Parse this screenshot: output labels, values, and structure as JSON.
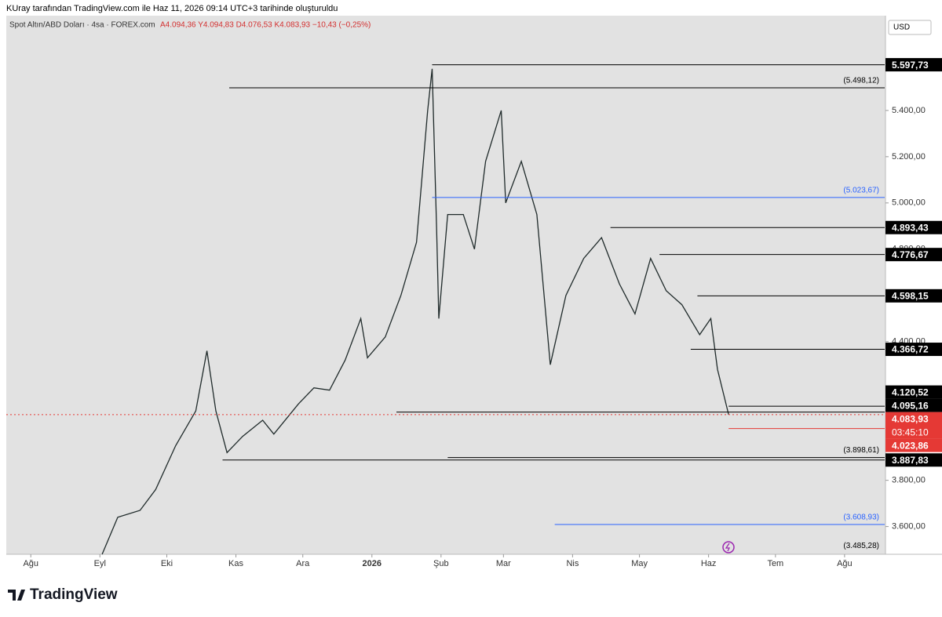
{
  "caption": "KUray tarafından TradingView.com ile Haz 11, 2026 09:14 UTC+3 tarihinde oluşturuldu",
  "brand": "TradingView",
  "chart_data": {
    "type": "line",
    "title": "Spot Altın/ABD Doları · 4sa · FOREX.com",
    "ohlc": "A4.094,36 Y4.094,83 D4.076,53 K4.083,93 −10,43 (−0,25%)",
    "currency": "USD",
    "color": "#1f2a2a",
    "xlim": [
      -11,
      383
    ],
    "ylim": [
      3480,
      5810
    ],
    "xticks": [
      {
        "value": 0,
        "label": "Ağu"
      },
      {
        "value": 31,
        "label": "Eyl"
      },
      {
        "value": 61,
        "label": "Eki"
      },
      {
        "value": 92,
        "label": "Kas"
      },
      {
        "value": 122,
        "label": "Ara"
      },
      {
        "value": 153,
        "label": "2026"
      },
      {
        "value": 184,
        "label": "Şub"
      },
      {
        "value": 212,
        "label": "Mar"
      },
      {
        "value": 243,
        "label": "Nis"
      },
      {
        "value": 273,
        "label": "May"
      },
      {
        "value": 304,
        "label": "Haz"
      },
      {
        "value": 334,
        "label": "Tem"
      },
      {
        "value": 365,
        "label": "Ağu"
      }
    ],
    "yticks": [
      {
        "value": 3600,
        "label": "3.600,00"
      },
      {
        "value": 3800,
        "label": "3.800,00"
      },
      {
        "value": 4400,
        "label": "4.400,00"
      },
      {
        "value": 4800,
        "label": "4.800,00"
      },
      {
        "value": 5000,
        "label": "5.000,00"
      },
      {
        "value": 5200,
        "label": "5.200,00"
      },
      {
        "value": 5400,
        "label": "5.400,00"
      }
    ],
    "x": [
      32,
      39,
      49,
      56,
      65,
      74,
      79,
      83,
      88,
      95,
      104,
      109,
      120,
      127,
      134,
      141,
      148,
      151,
      159,
      166,
      173,
      178,
      180,
      182,
      183,
      187,
      194,
      199,
      204,
      211,
      213,
      220,
      227,
      233,
      240,
      248,
      256,
      264,
      271,
      278,
      285,
      292,
      300,
      305,
      308,
      313
    ],
    "values": [
      3480,
      3640,
      3670,
      3760,
      3950,
      4100,
      4360,
      4100,
      3920,
      3990,
      4060,
      4000,
      4130,
      4200,
      4190,
      4320,
      4500,
      4330,
      4420,
      4600,
      4830,
      5400,
      5580,
      4900,
      4500,
      4950,
      4950,
      4800,
      5180,
      5400,
      5000,
      5180,
      4950,
      4300,
      4600,
      4760,
      4850,
      4650,
      4520,
      4760,
      4620,
      4560,
      4430,
      4500,
      4280,
      4083.93
    ],
    "levels": [
      {
        "value": 5597.73,
        "label": "5.597,73",
        "kind": "box",
        "color": "#000000",
        "from": 180
      },
      {
        "value": 5498.12,
        "label": "(5.498,12)",
        "kind": "note",
        "color": "#000000",
        "from": 89
      },
      {
        "value": 5023.67,
        "label": "(5.023,67)",
        "kind": "note",
        "color": "#2962ff",
        "from": 180
      },
      {
        "value": 4893.43,
        "label": "4.893,43",
        "kind": "box",
        "color": "#000000",
        "from": 260
      },
      {
        "value": 4776.67,
        "label": "4.776,67",
        "kind": "box",
        "color": "#000000",
        "from": 282
      },
      {
        "value": 4598.15,
        "label": "4.598,15",
        "kind": "box",
        "color": "#000000",
        "from": 299
      },
      {
        "value": 4366.72,
        "label": "4.366,72",
        "kind": "box",
        "color": "#000000",
        "from": 296
      },
      {
        "value": 4120.52,
        "label": "4.120,52",
        "kind": "box",
        "color": "#000000",
        "from": 313
      },
      {
        "value": 4095.16,
        "label": "4.095,16",
        "kind": "box",
        "color": "#000000",
        "from": 164
      },
      {
        "value": 4083.93,
        "label": "4.083,93",
        "kind": "box",
        "color": "#e53935",
        "from": -11,
        "countdown": "03:45:10"
      },
      {
        "value": 4023.86,
        "label": "4.023,86",
        "kind": "box",
        "color": "#e53935",
        "from": 313
      },
      {
        "value": 3898.61,
        "label": "(3.898,61)",
        "kind": "note",
        "color": "#000000",
        "from": 187
      },
      {
        "value": 3887.83,
        "label": "3.887,83",
        "kind": "box",
        "color": "#000000",
        "from": 86
      },
      {
        "value": 3608.93,
        "label": "(3.608,93)",
        "kind": "note",
        "color": "#2962ff",
        "from": 235
      },
      {
        "value": 3485.28,
        "label": "(3.485,28)",
        "kind": "note",
        "color": "#000000"
      }
    ]
  }
}
